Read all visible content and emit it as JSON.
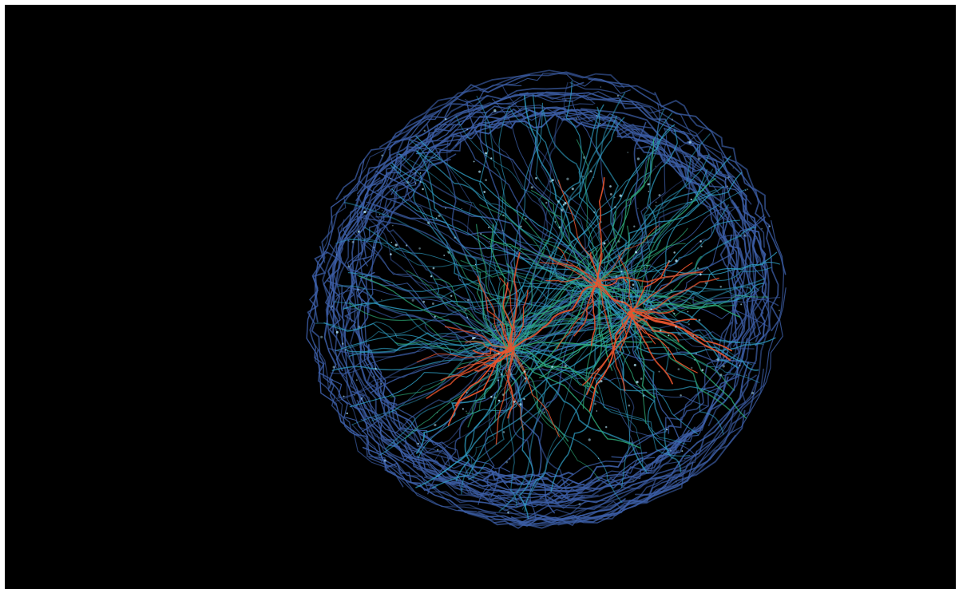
{
  "image": {
    "background_color": "#000000",
    "border_color": "#ffffff",
    "palette": {
      "outer_strands": "#3d5fa8",
      "mid_strands": "#2f9fc4",
      "inner_strands": "#2fae7a",
      "core_strands": "#e8542e",
      "highlight": "#b8ecff"
    }
  }
}
